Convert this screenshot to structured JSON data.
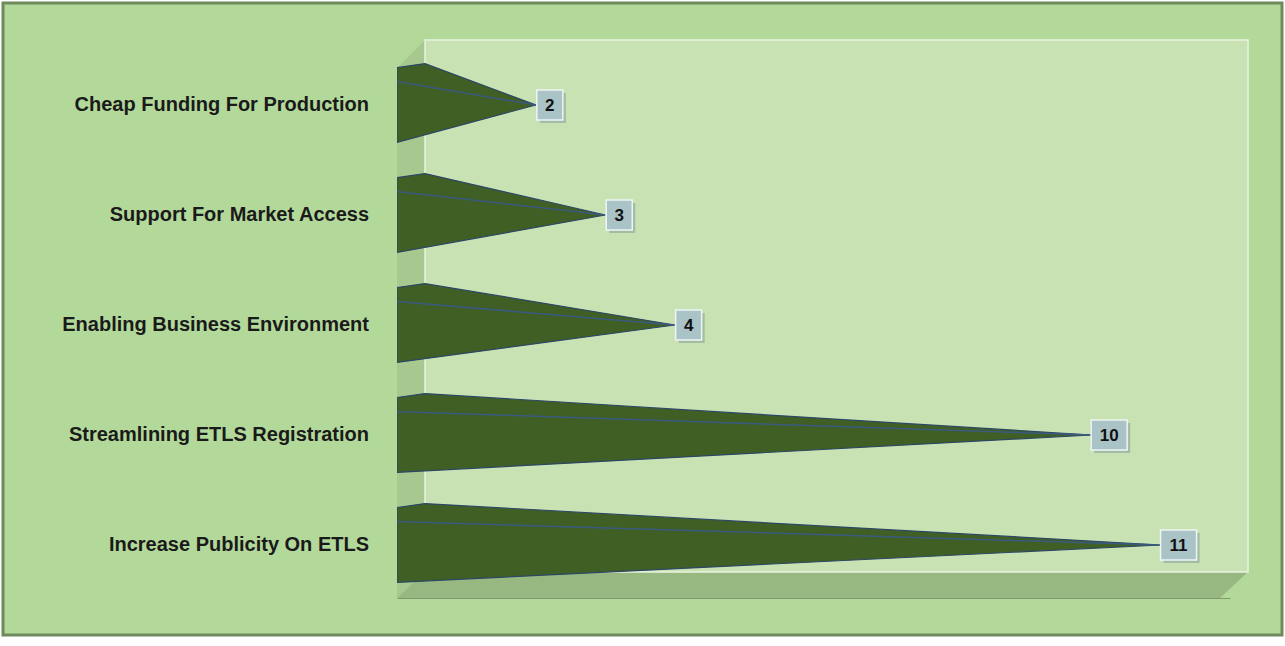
{
  "chart_data": {
    "type": "bar",
    "orientation": "horizontal",
    "categories": [
      "Cheap Funding For Production",
      "Support For Market Access",
      "Enabling Business Environment",
      "Streamlining ETLS Registration",
      "Increase Publicity On ETLS"
    ],
    "values": [
      2,
      3,
      4,
      10,
      11
    ],
    "color": "#3f5f24",
    "xlim": [
      0,
      12
    ],
    "data_labels": true,
    "tick_labels": false,
    "grid": false
  }
}
